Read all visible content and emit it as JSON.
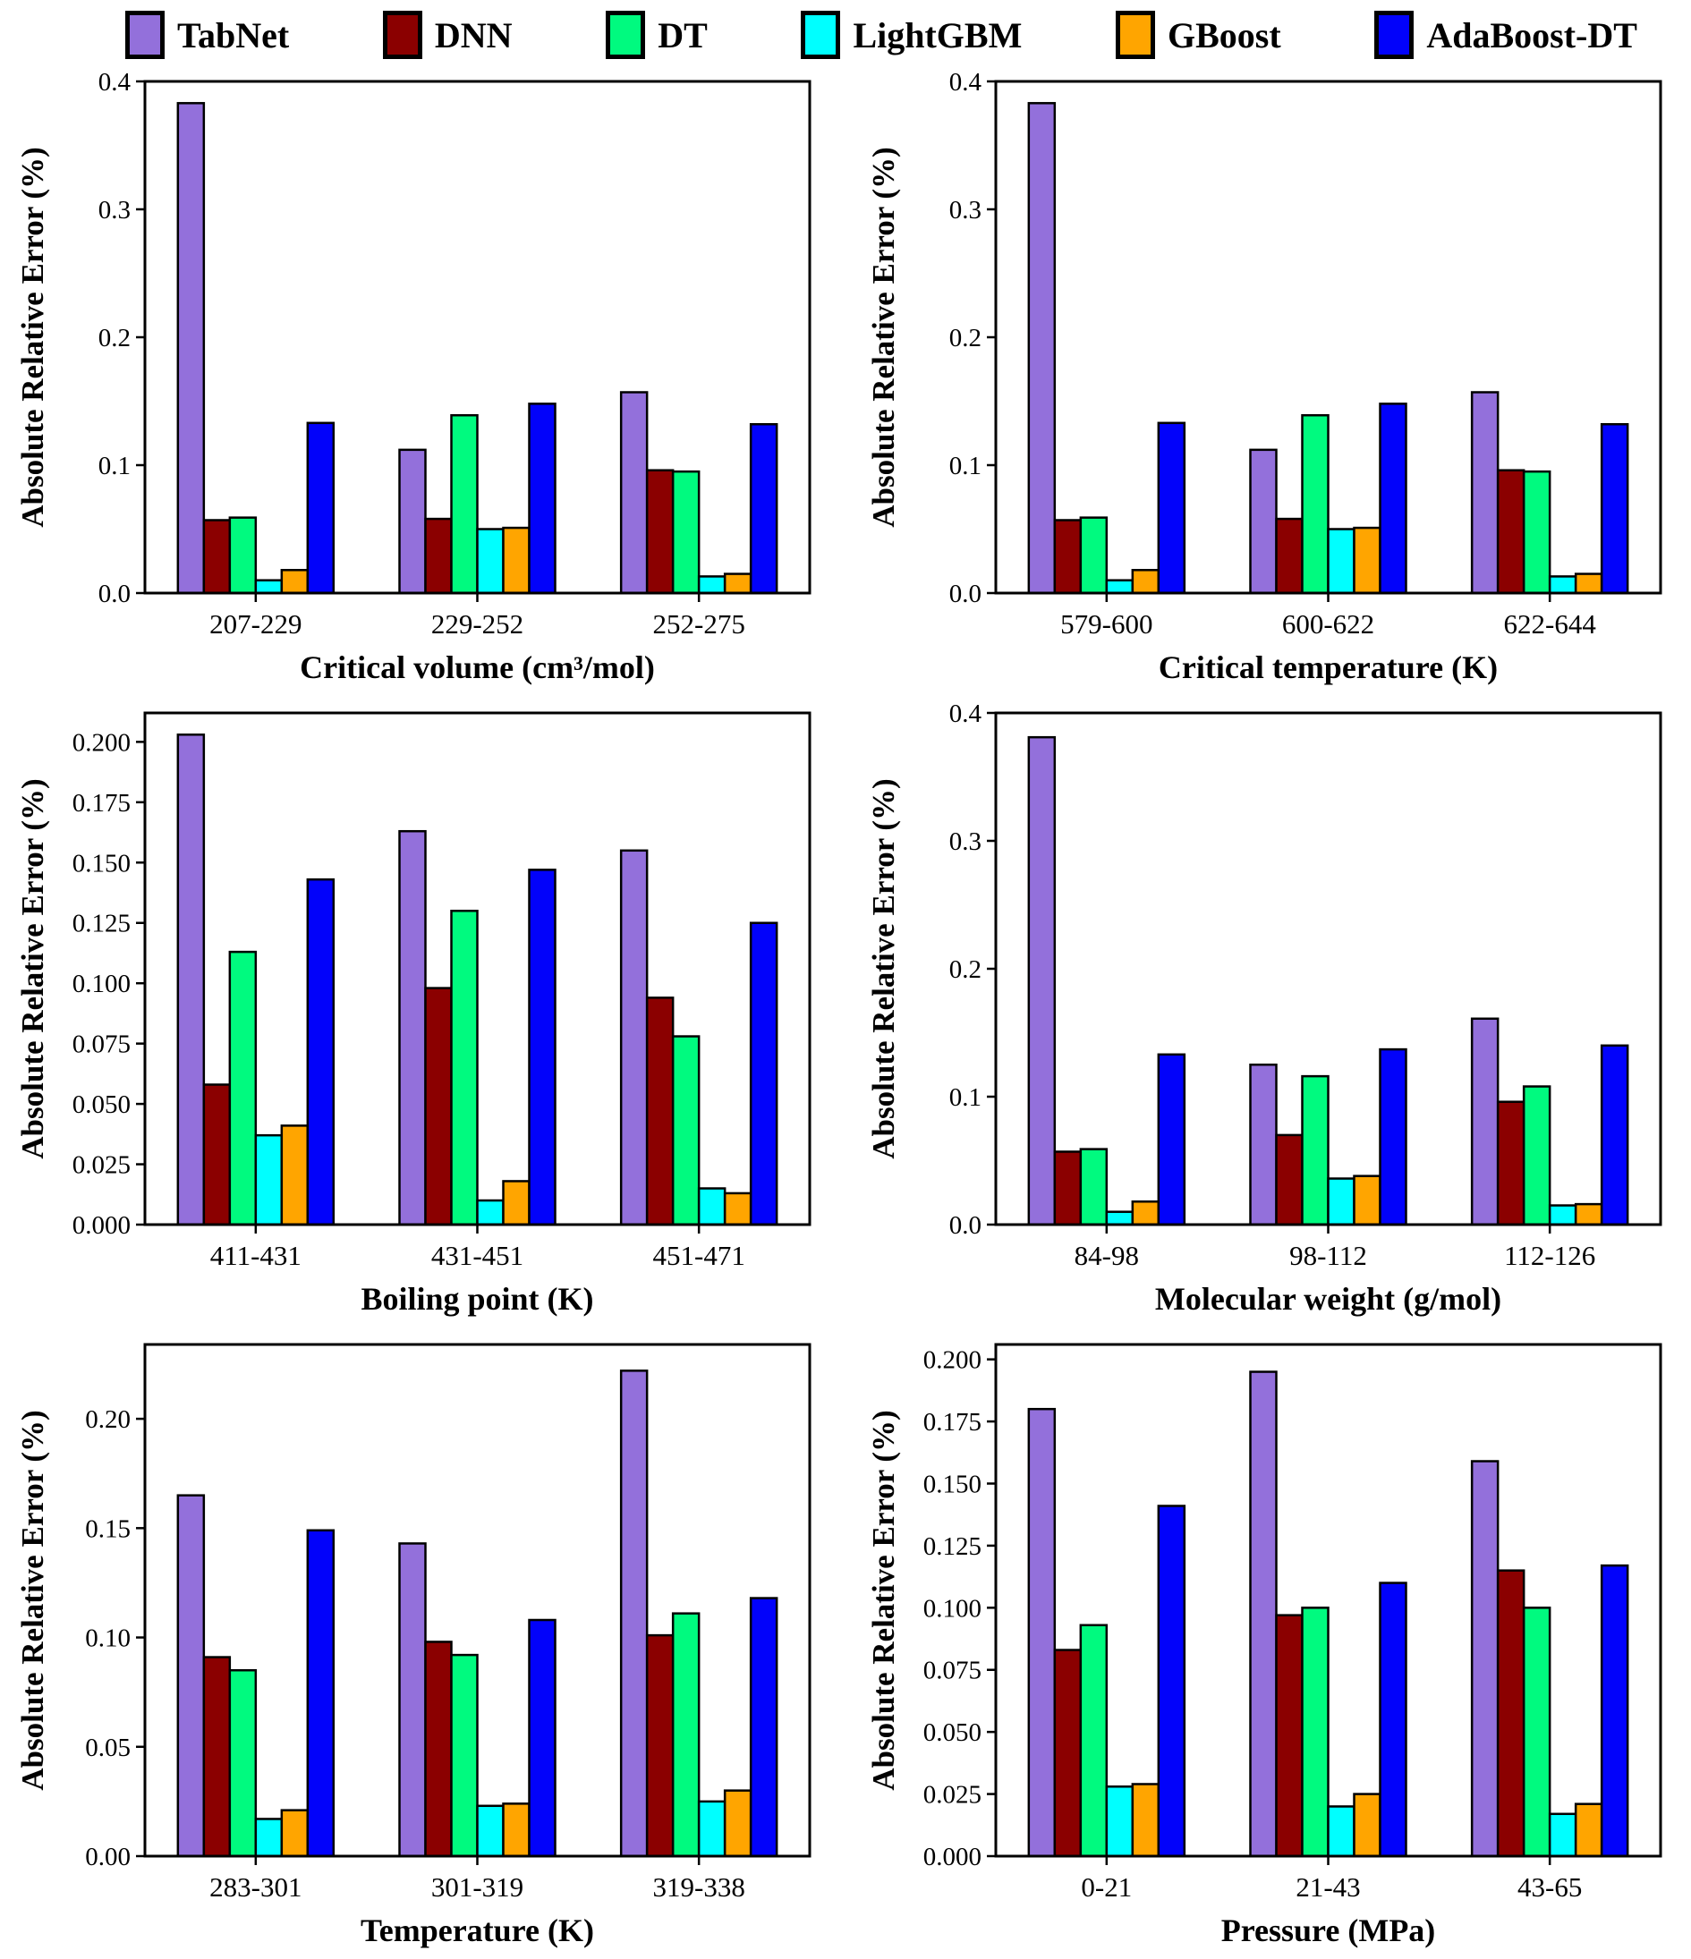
{
  "legend": {
    "items": [
      {
        "label": "TabNet",
        "color": "#9370DB"
      },
      {
        "label": "DNN",
        "color": "#8B0000"
      },
      {
        "label": "DT",
        "color": "#00FA7F"
      },
      {
        "label": "LightGBM",
        "color": "#00FFFF"
      },
      {
        "label": "GBoost",
        "color": "#FFA500"
      },
      {
        "label": "AdaBoost-DT",
        "color": "#0202FA"
      }
    ]
  },
  "chart_data": [
    {
      "type": "bar",
      "title": "",
      "xlabel": "Critical volume (cm³/mol)",
      "ylabel": "Absolute Relative Error (%)",
      "categories": [
        "207-229",
        "229-252",
        "252-275"
      ],
      "ylim": [
        0,
        0.4
      ],
      "yticks": [
        "0.0",
        "0.1",
        "0.2",
        "0.3",
        "0.4"
      ],
      "grid": false,
      "series": [
        {
          "name": "TabNet",
          "values": [
            0.383,
            0.112,
            0.157
          ]
        },
        {
          "name": "DNN",
          "values": [
            0.057,
            0.058,
            0.096
          ]
        },
        {
          "name": "DT",
          "values": [
            0.059,
            0.139,
            0.095
          ]
        },
        {
          "name": "LightGBM",
          "values": [
            0.01,
            0.05,
            0.013
          ]
        },
        {
          "name": "GBoost",
          "values": [
            0.018,
            0.051,
            0.015
          ]
        },
        {
          "name": "AdaBoost-DT",
          "values": [
            0.133,
            0.148,
            0.132
          ]
        }
      ]
    },
    {
      "type": "bar",
      "title": "",
      "xlabel": "Critical temperature (K)",
      "ylabel": "Absolute Relative Error (%)",
      "categories": [
        "579-600",
        "600-622",
        "622-644"
      ],
      "ylim": [
        0,
        0.4
      ],
      "yticks": [
        "0.0",
        "0.1",
        "0.2",
        "0.3",
        "0.4"
      ],
      "grid": false,
      "series": [
        {
          "name": "TabNet",
          "values": [
            0.383,
            0.112,
            0.157
          ]
        },
        {
          "name": "DNN",
          "values": [
            0.057,
            0.058,
            0.096
          ]
        },
        {
          "name": "DT",
          "values": [
            0.059,
            0.139,
            0.095
          ]
        },
        {
          "name": "LightGBM",
          "values": [
            0.01,
            0.05,
            0.013
          ]
        },
        {
          "name": "GBoost",
          "values": [
            0.018,
            0.051,
            0.015
          ]
        },
        {
          "name": "AdaBoost-DT",
          "values": [
            0.133,
            0.148,
            0.132
          ]
        }
      ]
    },
    {
      "type": "bar",
      "title": "",
      "xlabel": "Boiling point (K)",
      "ylabel": "Absolute Relative Error (%)",
      "categories": [
        "411-431",
        "431-451",
        "451-471"
      ],
      "ylim": [
        0,
        0.212
      ],
      "yticks": [
        "0.000",
        "0.025",
        "0.050",
        "0.075",
        "0.100",
        "0.125",
        "0.150",
        "0.175",
        "0.200"
      ],
      "grid": false,
      "series": [
        {
          "name": "TabNet",
          "values": [
            0.203,
            0.163,
            0.155
          ]
        },
        {
          "name": "DNN",
          "values": [
            0.058,
            0.098,
            0.094
          ]
        },
        {
          "name": "DT",
          "values": [
            0.113,
            0.13,
            0.078
          ]
        },
        {
          "name": "LightGBM",
          "values": [
            0.037,
            0.01,
            0.015
          ]
        },
        {
          "name": "GBoost",
          "values": [
            0.041,
            0.018,
            0.013
          ]
        },
        {
          "name": "AdaBoost-DT",
          "values": [
            0.143,
            0.147,
            0.125
          ]
        }
      ]
    },
    {
      "type": "bar",
      "title": "",
      "xlabel": "Molecular weight (g/mol)",
      "ylabel": "Absolute Relative Error (%)",
      "categories": [
        "84-98",
        "98-112",
        "112-126"
      ],
      "ylim": [
        0,
        0.4
      ],
      "yticks": [
        "0.0",
        "0.1",
        "0.2",
        "0.3",
        "0.4"
      ],
      "grid": false,
      "series": [
        {
          "name": "TabNet",
          "values": [
            0.381,
            0.125,
            0.161
          ]
        },
        {
          "name": "DNN",
          "values": [
            0.057,
            0.07,
            0.096
          ]
        },
        {
          "name": "DT",
          "values": [
            0.059,
            0.116,
            0.108
          ]
        },
        {
          "name": "LightGBM",
          "values": [
            0.01,
            0.036,
            0.015
          ]
        },
        {
          "name": "GBoost",
          "values": [
            0.018,
            0.038,
            0.016
          ]
        },
        {
          "name": "AdaBoost-DT",
          "values": [
            0.133,
            0.137,
            0.14
          ]
        }
      ]
    },
    {
      "type": "bar",
      "title": "",
      "xlabel": "Temperature (K)",
      "ylabel": "Absolute Relative Error (%)",
      "categories": [
        "283-301",
        "301-319",
        "319-338"
      ],
      "ylim": [
        0,
        0.234
      ],
      "yticks": [
        "0.00",
        "0.05",
        "0.10",
        "0.15",
        "0.20"
      ],
      "grid": false,
      "series": [
        {
          "name": "TabNet",
          "values": [
            0.165,
            0.143,
            0.222
          ]
        },
        {
          "name": "DNN",
          "values": [
            0.091,
            0.098,
            0.101
          ]
        },
        {
          "name": "DT",
          "values": [
            0.085,
            0.092,
            0.111
          ]
        },
        {
          "name": "LightGBM",
          "values": [
            0.017,
            0.023,
            0.025
          ]
        },
        {
          "name": "GBoost",
          "values": [
            0.021,
            0.024,
            0.03
          ]
        },
        {
          "name": "AdaBoost-DT",
          "values": [
            0.149,
            0.108,
            0.118
          ]
        }
      ]
    },
    {
      "type": "bar",
      "title": "",
      "xlabel": "Pressure (MPa)",
      "ylabel": "Absolute Relative Error (%)",
      "categories": [
        "0-21",
        "21-43",
        "43-65"
      ],
      "ylim": [
        0,
        0.206
      ],
      "yticks": [
        "0.000",
        "0.025",
        "0.050",
        "0.075",
        "0.100",
        "0.125",
        "0.150",
        "0.175",
        "0.200"
      ],
      "grid": false,
      "series": [
        {
          "name": "TabNet",
          "values": [
            0.18,
            0.195,
            0.159
          ]
        },
        {
          "name": "DNN",
          "values": [
            0.083,
            0.097,
            0.115
          ]
        },
        {
          "name": "DT",
          "values": [
            0.093,
            0.1,
            0.1
          ]
        },
        {
          "name": "LightGBM",
          "values": [
            0.028,
            0.02,
            0.017
          ]
        },
        {
          "name": "GBoost",
          "values": [
            0.029,
            0.025,
            0.021
          ]
        },
        {
          "name": "AdaBoost-DT",
          "values": [
            0.141,
            0.11,
            0.117
          ]
        }
      ]
    }
  ]
}
